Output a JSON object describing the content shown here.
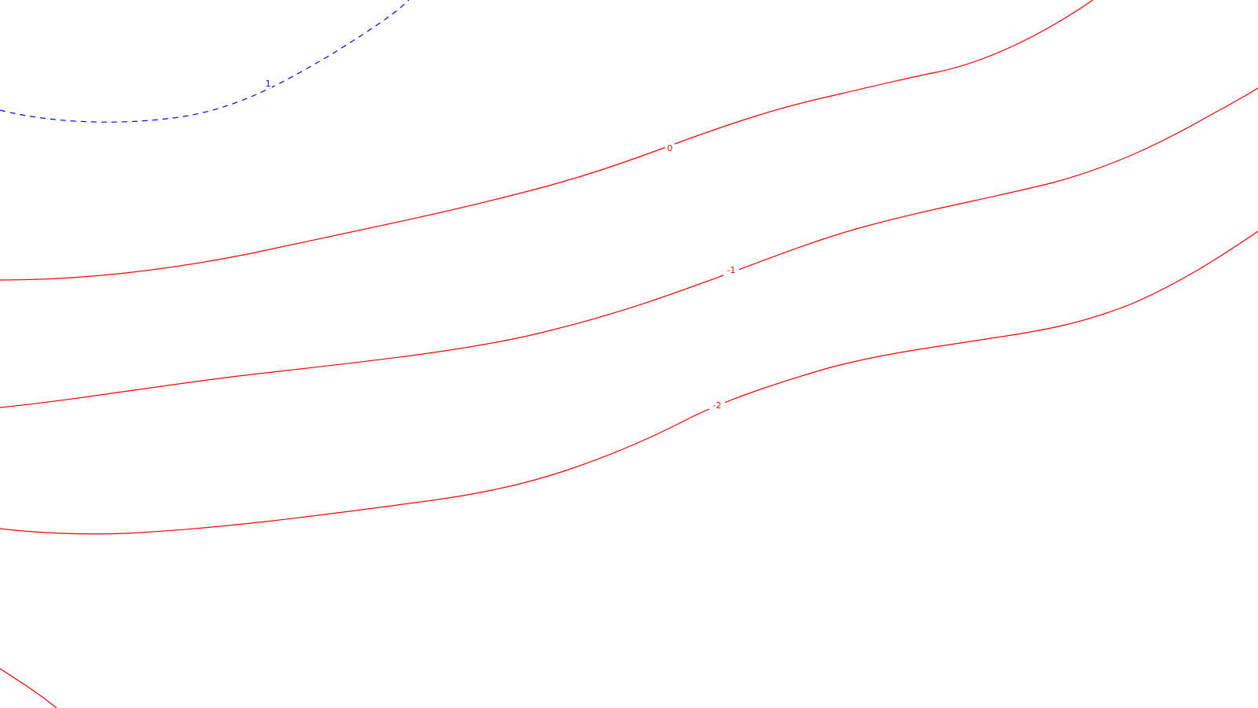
{
  "chart_data": {
    "type": "contour",
    "title": "",
    "xlabel": "",
    "ylabel": "",
    "grid": false,
    "legend": "none",
    "colors": {
      "positive": "#0000ff",
      "negative": "#ff0000",
      "zero": "#ff0000",
      "background": "#ffffff"
    },
    "levels": [
      {
        "level": 1,
        "label": "1",
        "style": "dashed",
        "color": "#0000ff"
      },
      {
        "level": 0,
        "label": "0",
        "style": "solid",
        "color": "#ff0000"
      },
      {
        "level": -1,
        "label": "-1",
        "style": "solid",
        "color": "#ff0000"
      },
      {
        "level": -2,
        "label": "-2",
        "style": "solid",
        "color": "#ff0000"
      },
      {
        "level": -3,
        "label": "",
        "style": "solid",
        "color": "#ff0000"
      }
    ]
  }
}
